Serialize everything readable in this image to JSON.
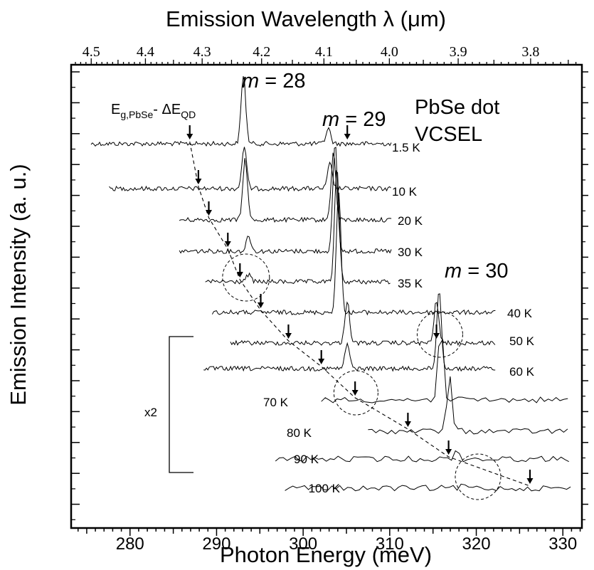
{
  "chart_data": {
    "type": "line",
    "title": "",
    "xlabel": "Photon Energy (meV)",
    "x2label": "Emission Wavelength λ (μm)",
    "ylabel": "Emission Intensity (a. u.)",
    "xlim": [
      273.2,
      332.2
    ],
    "x_ticks": [
      280,
      290,
      300,
      310,
      320,
      330
    ],
    "top_axis_ticks_um": [
      4.5,
      4.4,
      4.3,
      4.2,
      4.1,
      4.0,
      3.9,
      3.8
    ],
    "annotations": {
      "sample": [
        "PbSe dot",
        "VCSEL"
      ],
      "mode_28": "m = 28",
      "mode_29": "m = 29",
      "mode_30": "m = 30",
      "bandgap_label": "E_g,PbSe - ΔE_QD",
      "scale_factor": "x2"
    },
    "series": [
      {
        "name": "1.5 K",
        "x_range": [
          275.5,
          310.2
        ],
        "peaks": [
          {
            "x": 293.1,
            "height": 97
          },
          {
            "x": 302.9,
            "height": 22
          }
        ],
        "bandgap_arrow_x": 286.9,
        "mode_arrow_x": 305.1
      },
      {
        "name": "10 K",
        "x_range": [
          277.6,
          310.2
        ],
        "peaks": [
          {
            "x": 293.2,
            "height": 60
          },
          {
            "x": 303.1,
            "height": 35
          }
        ],
        "bandgap_arrow_x": 287.9
      },
      {
        "name": "20 K",
        "x_range": [
          285.7,
          310.2
        ],
        "peaks": [
          {
            "x": 293.3,
            "height": 86
          },
          {
            "x": 303.5,
            "height": 95
          }
        ],
        "bandgap_arrow_x": 289.1
      },
      {
        "name": "30 K",
        "x_range": [
          285.7,
          310.2
        ],
        "peaks": [
          {
            "x": 293.7,
            "height": 22
          },
          {
            "x": 303.7,
            "height": 150
          }
        ],
        "bandgap_arrow_x": 291.3
      },
      {
        "name": "35 K",
        "x_range": [
          288.7,
          310.2
        ],
        "peaks": [
          {
            "x": 293.7,
            "height": 10
          },
          {
            "x": 303.9,
            "height": 160
          }
        ],
        "bandgap_arrow_x": 292.7
      },
      {
        "name": "40 K",
        "x_range": [
          289.5,
          322.3
        ],
        "peaks": [
          {
            "x": 304.1,
            "height": 170
          }
        ],
        "bandgap_arrow_x": 295.1
      },
      {
        "name": "50 K",
        "x_range": [
          291.6,
          322.3
        ],
        "peaks": [
          {
            "x": 305.1,
            "height": 60
          },
          {
            "x": 315.4,
            "height": 60
          }
        ],
        "bandgap_arrow_x": 298.3,
        "mode_arrow_x": 315.4
      },
      {
        "name": "60 K",
        "x_range": [
          288.5,
          322.3
        ],
        "peaks": [
          {
            "x": 305.1,
            "height": 35
          },
          {
            "x": 315.7,
            "height": 110
          }
        ],
        "bandgap_arrow_x": 302.1
      },
      {
        "name": "70 K",
        "x_range": [
          302.1,
          331.0
        ],
        "peaks": [
          {
            "x": 315.9,
            "height": 120
          }
        ],
        "bandgap_arrow_x": 306.0
      },
      {
        "name": "80 K",
        "x_range": [
          307.5,
          331.0
        ],
        "peaks": [
          {
            "x": 316.9,
            "height": 85
          }
        ],
        "bandgap_arrow_x": 312.1
      },
      {
        "name": "90 K",
        "x_range": [
          296.8,
          331.0
        ],
        "peaks": [
          {
            "x": 317.7,
            "height": 12
          }
        ],
        "bandgap_arrow_x": 316.8
      },
      {
        "name": "100 K",
        "x_range": [
          297.9,
          331.0
        ],
        "peaks": [
          {
            "x": 318.6,
            "height": 5
          }
        ],
        "bandgap_arrow_x": 326.2
      }
    ],
    "dashed_circles_x": [
      293.4,
      315.8,
      306.1,
      320.2
    ],
    "grid": false,
    "legend": "none"
  }
}
